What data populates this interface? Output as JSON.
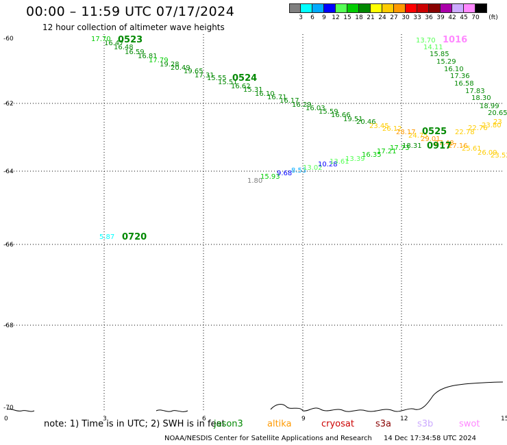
{
  "header": {
    "title": "00:00 – 11:59 UTC 07/17/2024",
    "subtitle": "12 hour collection of altimeter wave heights"
  },
  "color_scale": {
    "labels": [
      "3",
      "6",
      "9",
      "12",
      "15",
      "18",
      "21",
      "24",
      "27",
      "30",
      "33",
      "36",
      "39",
      "42",
      "45",
      "70"
    ],
    "unit": "(ft)",
    "colors": [
      "#808080",
      "#00ffff",
      "#00aaff",
      "#0000ff",
      "#55ff55",
      "#00cc00",
      "#008800",
      "#ffff00",
      "#ffcc00",
      "#ff9900",
      "#ff0000",
      "#cc0000",
      "#880000",
      "#aa00aa",
      "#ccaaff",
      "#ff88ff",
      "#000000"
    ]
  },
  "axes": {
    "x_ticks": [
      "0",
      "3",
      "6",
      "9",
      "12",
      "15"
    ],
    "y_ticks": [
      "-60",
      "-62",
      "-64",
      "-66",
      "-68",
      "-70"
    ]
  },
  "passes": [
    {
      "id": "0523",
      "color": "#008800"
    },
    {
      "id": "0524",
      "color": "#008800"
    },
    {
      "id": "0525",
      "color": "#008800"
    },
    {
      "id": "0917",
      "color": "#008800"
    },
    {
      "id": "1016",
      "color": "#ff88ff"
    },
    {
      "id": "0720",
      "color": "#008800"
    }
  ],
  "wave_labels": [
    {
      "text": "17.70",
      "color": "#00cc00"
    },
    {
      "text": "16.47",
      "color": "#008800"
    },
    {
      "text": "16.48",
      "color": "#008800"
    },
    {
      "text": "16.59",
      "color": "#008800"
    },
    {
      "text": "16.81",
      "color": "#008800"
    },
    {
      "text": "17.79",
      "color": "#00cc00"
    },
    {
      "text": "19.28",
      "color": "#008800"
    },
    {
      "text": "20.49",
      "color": "#008800"
    },
    {
      "text": "19.65",
      "color": "#008800"
    },
    {
      "text": "17.31",
      "color": "#008800"
    },
    {
      "text": "15.55",
      "color": "#008800"
    },
    {
      "text": "15.51",
      "color": "#008800"
    },
    {
      "text": "16.62",
      "color": "#008800"
    },
    {
      "text": "15.31",
      "color": "#008800"
    },
    {
      "text": "16.10",
      "color": "#008800"
    },
    {
      "text": "16.71",
      "color": "#008800"
    },
    {
      "text": "16.17",
      "color": "#008800"
    },
    {
      "text": "16.29",
      "color": "#008800"
    },
    {
      "text": "16.03",
      "color": "#008800"
    },
    {
      "text": "15.59",
      "color": "#008800"
    },
    {
      "text": "16.66",
      "color": "#008800"
    },
    {
      "text": "19.51",
      "color": "#008800"
    },
    {
      "text": "20.46",
      "color": "#008800"
    },
    {
      "text": "23.45",
      "color": "#ffcc00"
    },
    {
      "text": "26.12",
      "color": "#ffcc00"
    },
    {
      "text": "28.17",
      "color": "#ff9900"
    },
    {
      "text": "24.75",
      "color": "#ffcc00"
    },
    {
      "text": "29.01",
      "color": "#ff9900"
    },
    {
      "text": "27.48",
      "color": "#ff9900"
    },
    {
      "text": "27.16",
      "color": "#ff9900"
    },
    {
      "text": "25.61",
      "color": "#ffcc00"
    },
    {
      "text": "26.09",
      "color": "#ffcc00"
    },
    {
      "text": "23.52",
      "color": "#ffcc00"
    },
    {
      "text": "22.78",
      "color": "#ffcc00"
    },
    {
      "text": "22.76",
      "color": "#ffcc00"
    },
    {
      "text": "23.80",
      "color": "#ffcc00"
    },
    {
      "text": "23",
      "color": "#ffcc00"
    },
    {
      "text": "20.65",
      "color": "#008800"
    },
    {
      "text": "13.70",
      "color": "#55ff55"
    },
    {
      "text": "14.11",
      "color": "#55ff55"
    },
    {
      "text": "15.85",
      "color": "#008800"
    },
    {
      "text": "15.29",
      "color": "#008800"
    },
    {
      "text": "16.10",
      "color": "#008800"
    },
    {
      "text": "17.36",
      "color": "#008800"
    },
    {
      "text": "16.58",
      "color": "#008800"
    },
    {
      "text": "17.83",
      "color": "#008800"
    },
    {
      "text": "18.30",
      "color": "#008800"
    },
    {
      "text": "18.99",
      "color": "#008800"
    },
    {
      "text": "1.80",
      "color": "#808080"
    },
    {
      "text": "15.93",
      "color": "#00cc00"
    },
    {
      "text": "9.68",
      "color": "#0000ff"
    },
    {
      "text": "8.53",
      "color": "#00aaff"
    },
    {
      "text": "13.02",
      "color": "#55ff55"
    },
    {
      "text": "10.28",
      "color": "#0000ff"
    },
    {
      "text": "13.61",
      "color": "#55ff55"
    },
    {
      "text": "13.39",
      "color": "#55ff55"
    },
    {
      "text": "16.35",
      "color": "#00cc00"
    },
    {
      "text": "17.21",
      "color": "#00cc00"
    },
    {
      "text": "17.73",
      "color": "#00cc00"
    },
    {
      "text": "18.31",
      "color": "#008800"
    },
    {
      "text": "5.87",
      "color": "#00ffff"
    }
  ],
  "footer": {
    "note": "note: 1) Time is in UTC; 2) SWH is in feet",
    "satellites": [
      {
        "name": "jason3",
        "color": "#008800"
      },
      {
        "name": "altika",
        "color": "#ff9900"
      },
      {
        "name": "cryosat",
        "color": "#cc0000"
      },
      {
        "name": "s3a",
        "color": "#880000"
      },
      {
        "name": "s3b",
        "color": "#ccaaff"
      },
      {
        "name": "swot",
        "color": "#ff88ff"
      }
    ],
    "credit": "NOAA/NESDIS Center for Satellite Applications and Research",
    "timestamp": "14 Dec 17:34:58 UTC 2024"
  }
}
